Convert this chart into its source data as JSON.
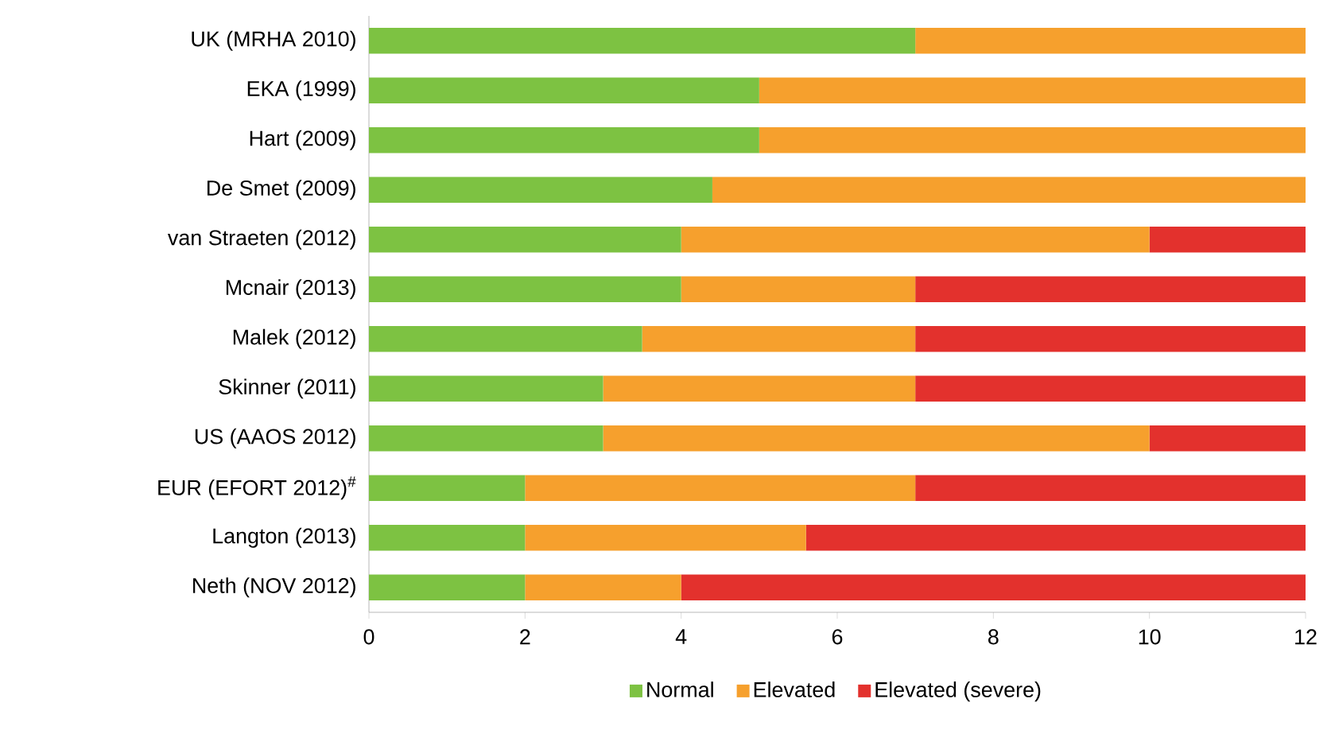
{
  "chart_data": {
    "type": "bar",
    "orientation": "horizontal",
    "stacked": true,
    "categories": [
      "UK (MRHA 2010)",
      "EKA (1999)",
      "Hart (2009)",
      "De Smet (2009)",
      "van Straeten (2012)",
      "Mcnair (2013)",
      "Malek (2012)",
      "Skinner (2011)",
      "US (AAOS 2012)",
      "EUR (EFORT 2012)$^{#}$",
      "Langton (2013)",
      "Neth (NOV 2012)"
    ],
    "series": [
      {
        "name": "Normal",
        "color": "#7dc242",
        "values": [
          7,
          5,
          5,
          4.4,
          4,
          4,
          3.5,
          3,
          3,
          2,
          2,
          2
        ]
      },
      {
        "name": "Elevated",
        "color": "#f6a02d",
        "values": [
          5,
          7,
          7,
          7.6,
          6,
          3,
          3.5,
          4,
          7,
          5,
          3.6,
          2
        ]
      },
      {
        "name": "Elevated (severe)",
        "color": "#e3312d",
        "values": [
          0,
          0,
          0,
          0,
          2,
          5,
          5,
          5,
          2,
          5,
          6.4,
          8
        ]
      }
    ],
    "xlim": [
      0,
      12
    ],
    "xticks": [
      0,
      2,
      4,
      6,
      8,
      10,
      12
    ],
    "legend": "bottom"
  }
}
